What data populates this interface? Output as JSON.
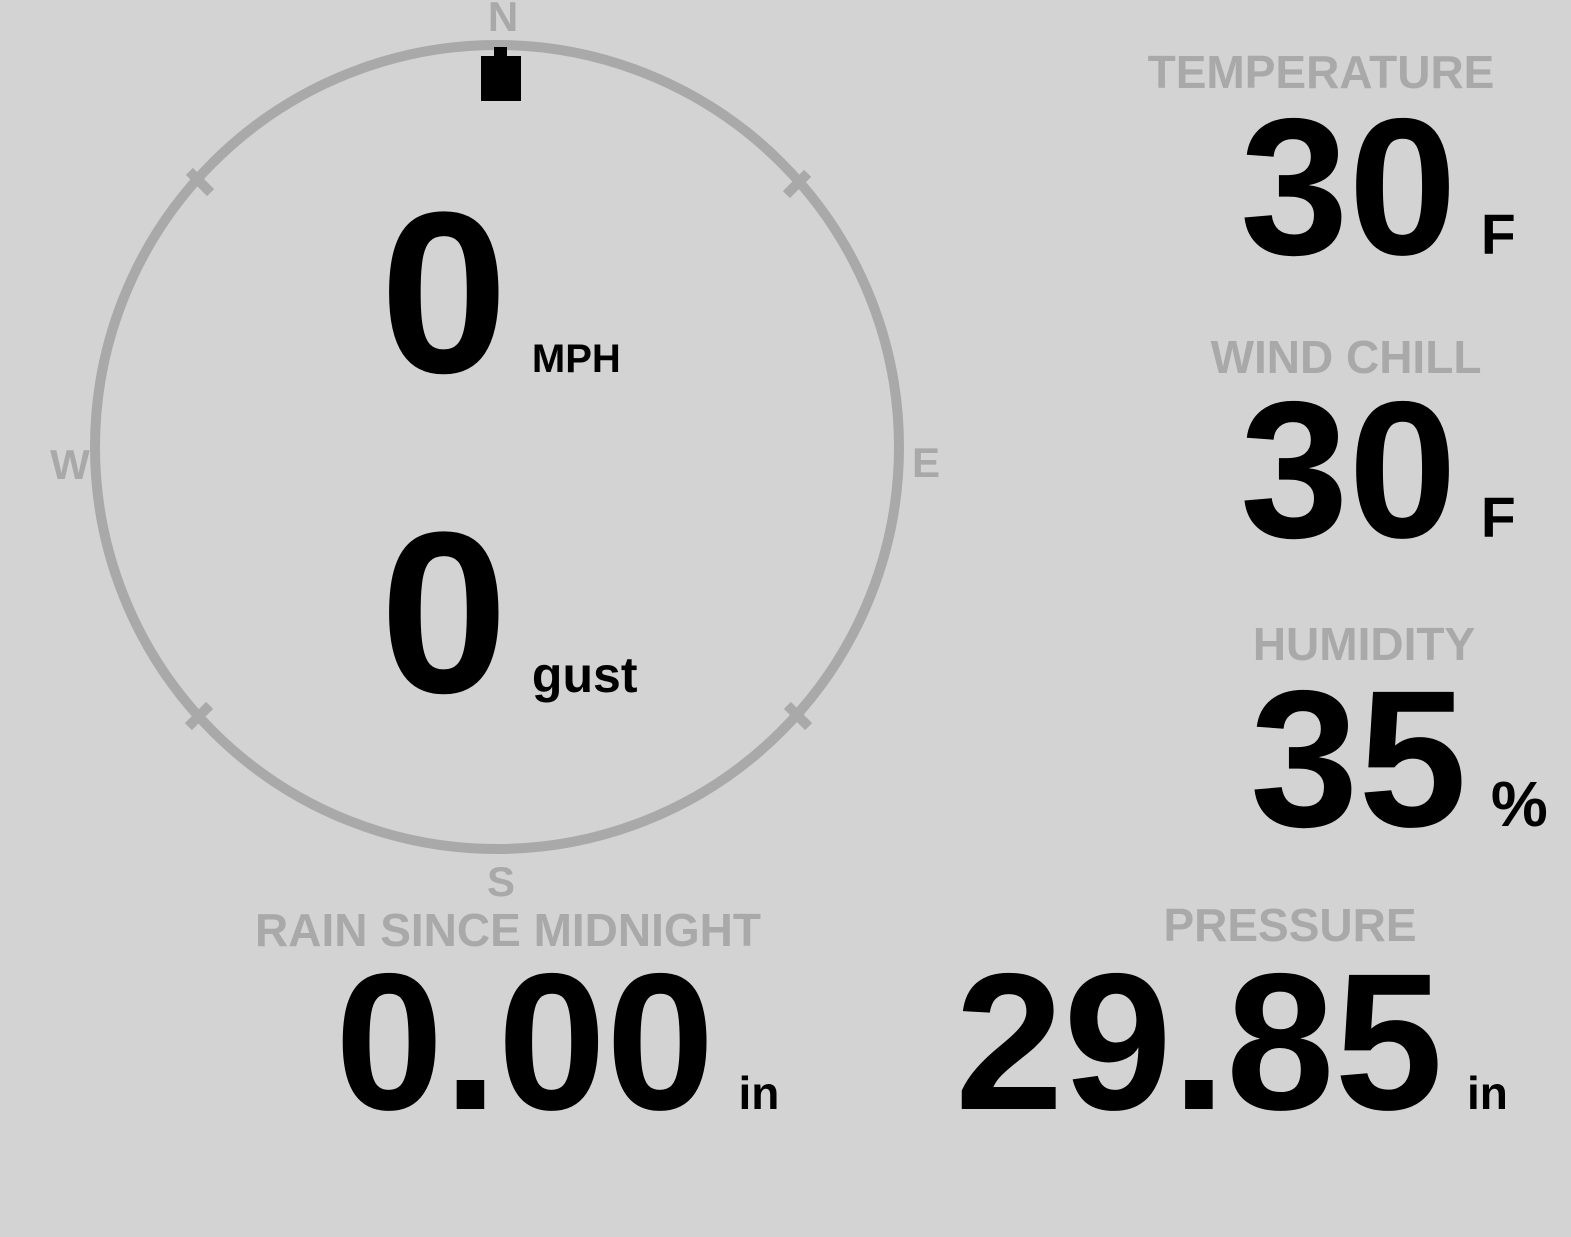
{
  "colors": {
    "background": "#d3d3d3",
    "muted_gray": "#a9a9a9",
    "value_black": "#000000"
  },
  "compass": {
    "cardinals": {
      "north": "N",
      "east": "E",
      "south": "S",
      "west": "W"
    },
    "wind_direction": "N",
    "wind_speed": {
      "value": "0",
      "unit": "MPH"
    },
    "wind_gust": {
      "value": "0",
      "unit": "gust"
    }
  },
  "metrics": {
    "temperature": {
      "label": "TEMPERATURE",
      "value": "30",
      "unit": "F"
    },
    "wind_chill": {
      "label": "WIND CHILL",
      "value": "30",
      "unit": "F"
    },
    "humidity": {
      "label": "HUMIDITY",
      "value": "35",
      "unit": "%"
    },
    "rain_since_midnight": {
      "label": "RAIN SINCE MIDNIGHT",
      "value": "0.00",
      "unit": "in"
    },
    "pressure": {
      "label": "PRESSURE",
      "value": "29.85",
      "unit": "in"
    }
  }
}
